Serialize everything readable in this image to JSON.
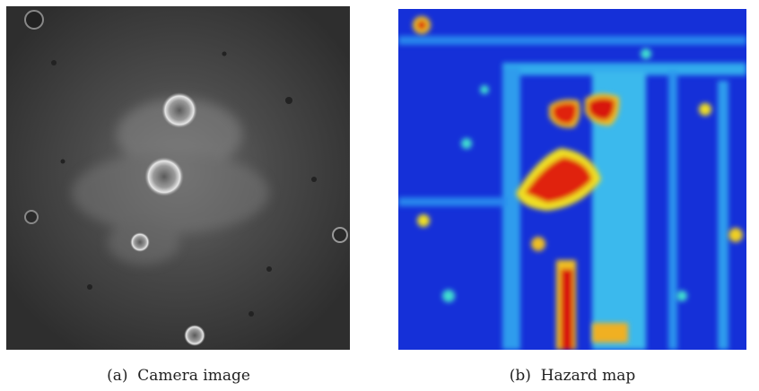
{
  "figure": {
    "subfigures": [
      {
        "caption": "(a)  Camera image"
      },
      {
        "caption": "(b)  Hazard map"
      }
    ]
  }
}
